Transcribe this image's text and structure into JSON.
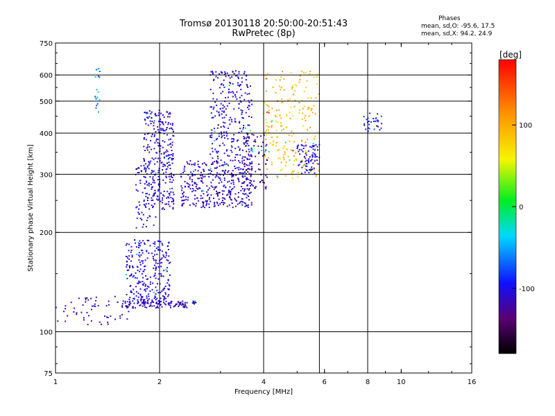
{
  "header": {
    "title_line1": "Tromsø 20130118 20:50:00-20:51:43",
    "title_line2": "RwPretec (8p)"
  },
  "stats": {
    "heading": "Phases",
    "line_o": "mean, sd,O: -95.6, 17.5",
    "line_x": "mean, sd,X:  94.2, 24.9"
  },
  "colorbar": {
    "label": "[deg]",
    "min": -180,
    "max": 180,
    "tick_labels": [
      "100",
      "0",
      "-100"
    ],
    "tick_values": [
      100,
      0,
      -100
    ]
  },
  "chart_data": {
    "type": "scatter",
    "title": "Tromsø 20130118 20:50:00-20:51:43",
    "subtitle": "RwPretec (8p)",
    "xlabel": "Frequency [MHz]",
    "ylabel": "Stationary phase Virtual Height [km]",
    "x_scale": "log",
    "y_scale": "log",
    "xlim": [
      1,
      16
    ],
    "ylim": [
      75,
      750
    ],
    "x_ticks": [
      1,
      2,
      4,
      6,
      8,
      10,
      16
    ],
    "x_tick_labels": [
      "1",
      "2",
      "4",
      "6",
      "8",
      "10",
      "16"
    ],
    "x_grid": [
      2,
      4,
      5.8,
      8
    ],
    "y_ticks": [
      75,
      100,
      200,
      300,
      400,
      500,
      600,
      750
    ],
    "y_tick_labels": [
      "75",
      "100",
      "200",
      "300",
      "400",
      "500",
      "600",
      "750"
    ],
    "y_grid": [
      100,
      200,
      300,
      400,
      500,
      600
    ],
    "grid": true,
    "color_scale": "phase (deg), -180 to 180",
    "clusters": [
      {
        "x": [
          1.0,
          1.65
        ],
        "y": [
          105,
          128
        ],
        "n": 55,
        "phase": -110,
        "spread": 12
      },
      {
        "x": [
          1.55,
          2.55
        ],
        "y": [
          118,
          124
        ],
        "n": 130,
        "phase": -112,
        "spread": 10
      },
      {
        "x": [
          1.6,
          2.15
        ],
        "y": [
          124,
          190
        ],
        "n": 260,
        "phase": -105,
        "spread": 14
      },
      {
        "x": [
          1.8,
          2.2
        ],
        "y": [
          235,
          470
        ],
        "n": 300,
        "phase": -108,
        "spread": 12
      },
      {
        "x": [
          1.7,
          1.95
        ],
        "y": [
          205,
          320
        ],
        "n": 70,
        "phase": -100,
        "spread": 15
      },
      {
        "x": [
          2.3,
          3.7
        ],
        "y": [
          238,
          330
        ],
        "n": 380,
        "phase": -110,
        "spread": 12
      },
      {
        "x": [
          2.8,
          3.7
        ],
        "y": [
          330,
          620
        ],
        "n": 260,
        "phase": -105,
        "spread": 14
      },
      {
        "x": [
          3.5,
          4.1
        ],
        "y": [
          270,
          400
        ],
        "n": 90,
        "phase": -125,
        "spread": 15
      },
      {
        "x": [
          4.0,
          5.8
        ],
        "y": [
          290,
          620
        ],
        "n": 220,
        "phase": 90,
        "spread": 25
      },
      {
        "x": [
          5.0,
          5.8
        ],
        "y": [
          300,
          370
        ],
        "n": 80,
        "phase": -100,
        "spread": 15
      },
      {
        "x": [
          7.8,
          8.8
        ],
        "y": [
          400,
          460
        ],
        "n": 30,
        "phase": -95,
        "spread": 20
      },
      {
        "x": [
          1.3,
          1.35
        ],
        "y": [
          460,
          630
        ],
        "n": 18,
        "phase": -60,
        "spread": 30
      }
    ]
  }
}
